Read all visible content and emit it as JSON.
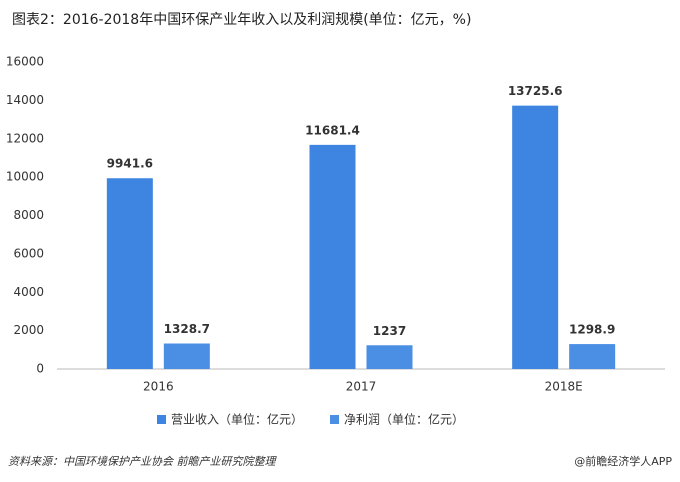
{
  "chart_data": {
    "type": "bar",
    "title": "图表2：2016-2018年中国环保产业年收入以及利润规模(单位：亿元，%)",
    "categories": [
      "2016",
      "2017",
      "2018E"
    ],
    "series": [
      {
        "name": "营业收入（单位：亿元）",
        "color": "#3d85e0",
        "values": [
          9941.6,
          11681.4,
          13725.6
        ]
      },
      {
        "name": "净利润（单位：亿元）",
        "color": "#4a8fe4",
        "values": [
          1328.7,
          1237,
          1298.9
        ]
      }
    ],
    "ylim": [
      0,
      16000
    ],
    "yticks": [
      0,
      2000,
      4000,
      6000,
      8000,
      10000,
      12000,
      14000,
      16000
    ],
    "grid": false,
    "legend": "bottom"
  },
  "footer": {
    "source": "资料来源：中国环境保护产业协会 前瞻产业研究院整理",
    "brand": "@前瞻经济学人APP"
  }
}
